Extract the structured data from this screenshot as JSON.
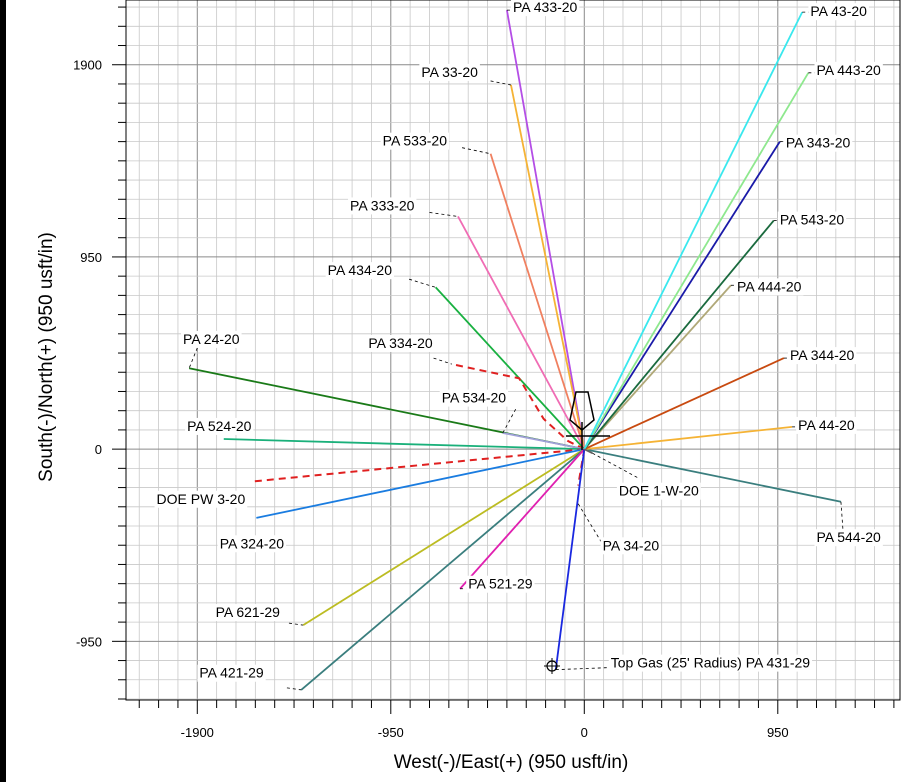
{
  "chart_data": {
    "type": "line",
    "title": "",
    "xlabel": "West(-)/East(+) (950 usft/in)",
    "ylabel": "South(-)/North(+) (950 usft/in)",
    "xlim": [
      -2250,
      1550
    ],
    "ylim": [
      -1240,
      2220
    ],
    "x_ticks": [
      -1900,
      -950,
      0,
      950
    ],
    "y_ticks": [
      -950,
      0,
      950,
      1900
    ],
    "grid": true,
    "series": [
      {
        "name": "PA 433-20",
        "color": "#b44ee6",
        "dash": false,
        "x": [
          0,
          -380
        ],
        "y": [
          0,
          2170
        ]
      },
      {
        "name": "PA 33-20",
        "color": "#f5b335",
        "dash": false,
        "x": [
          0,
          -360
        ],
        "y": [
          0,
          1800
        ]
      },
      {
        "name": "PA 533-20",
        "color": "#f08060",
        "dash": false,
        "x": [
          0,
          -460
        ],
        "y": [
          0,
          1460
        ]
      },
      {
        "name": "PA 333-20",
        "color": "#f06cb4",
        "dash": false,
        "x": [
          0,
          -620
        ],
        "y": [
          0,
          1150
        ]
      },
      {
        "name": "PA 434-20",
        "color": "#18b040",
        "dash": false,
        "x": [
          0,
          -730
        ],
        "y": [
          0,
          800
        ]
      },
      {
        "name": "PA 24-20",
        "color": "#1a7a18",
        "dash": false,
        "x": [
          0,
          -1940
        ],
        "y": [
          0,
          400
        ]
      },
      {
        "name": "PA 334-20",
        "color": "#e02020",
        "dash": true,
        "x": [
          0,
          -80,
          -200,
          -320,
          -650
        ],
        "y": [
          0,
          40,
          150,
          350,
          420
        ]
      },
      {
        "name": "PA 534-20",
        "color": "#a0a0d8",
        "dash": false,
        "x": [
          0,
          -400
        ],
        "y": [
          0,
          80
        ]
      },
      {
        "name": "PA 524-20",
        "color": "#1ab07a",
        "dash": false,
        "x": [
          0,
          -1770
        ],
        "y": [
          0,
          50
        ]
      },
      {
        "name": "DOE PW 3-20",
        "color": "#e02020",
        "dash": true,
        "x": [
          0,
          -1630
        ],
        "y": [
          0,
          -160
        ]
      },
      {
        "name": "PA 324-20",
        "color": "#1a7ce0",
        "dash": false,
        "x": [
          0,
          -1610
        ],
        "y": [
          0,
          -340
        ]
      },
      {
        "name": "PA 621-29",
        "color": "#bcbc22",
        "dash": false,
        "x": [
          0,
          -1380
        ],
        "y": [
          0,
          -870
        ]
      },
      {
        "name": "PA 421-29",
        "color": "#3a7e7e",
        "dash": false,
        "x": [
          0,
          -1390
        ],
        "y": [
          0,
          -1190
        ]
      },
      {
        "name": "PA 521-29",
        "color": "#e020b0",
        "dash": false,
        "x": [
          0,
          -610
        ],
        "y": [
          0,
          -690
        ]
      },
      {
        "name": "PA 34-20",
        "color": "#e02020",
        "dash": true,
        "x": [
          0,
          -30
        ],
        "y": [
          0,
          -180
        ]
      },
      {
        "name": "Top Gas (25' Radius) PA 431-29",
        "color": "#1a28e0",
        "dash": false,
        "x": [
          0,
          -140
        ],
        "y": [
          0,
          -1090
        ]
      },
      {
        "name": "PA 544-20",
        "color": "#3a7e7e",
        "dash": false,
        "x": [
          0,
          1260
        ],
        "y": [
          0,
          -260
        ]
      },
      {
        "name": "PA 44-20",
        "color": "#f5b335",
        "dash": false,
        "x": [
          0,
          1020
        ],
        "y": [
          0,
          110
        ]
      },
      {
        "name": "PA 344-20",
        "color": "#c84a10",
        "dash": false,
        "x": [
          0,
          980
        ],
        "y": [
          0,
          450
        ]
      },
      {
        "name": "PA 444-20",
        "color": "#b0a878",
        "dash": false,
        "x": [
          0,
          720
        ],
        "y": [
          0,
          810
        ]
      },
      {
        "name": "PA 543-20",
        "color": "#1a6a3e",
        "dash": false,
        "x": [
          0,
          930
        ],
        "y": [
          0,
          1130
        ]
      },
      {
        "name": "PA 343-20",
        "color": "#1a1aa8",
        "dash": false,
        "x": [
          0,
          960
        ],
        "y": [
          0,
          1520
        ]
      },
      {
        "name": "PA 443-20",
        "color": "#8ee88e",
        "dash": false,
        "x": [
          0,
          1100
        ],
        "y": [
          0,
          1860
        ]
      },
      {
        "name": "PA 43-20",
        "color": "#3ae8ee",
        "dash": false,
        "x": [
          0,
          1070
        ],
        "y": [
          0,
          2160
        ]
      },
      {
        "name": "DOE 1-W-20",
        "color": "#606060",
        "dash": false,
        "x": [
          0,
          40
        ],
        "y": [
          0,
          -20
        ]
      }
    ],
    "labels": [
      {
        "text": "PA 433-20",
        "x": -350,
        "y": 2160,
        "anchor": "start",
        "leader": [
          [
            -380,
            2170
          ],
          [
            -350,
            2170
          ]
        ]
      },
      {
        "text": "PA 33-20",
        "x": -800,
        "y": 1840,
        "anchor": "start",
        "leader": [
          [
            -460,
            1820
          ],
          [
            -360,
            1800
          ]
        ]
      },
      {
        "text": "PA 533-20",
        "x": -990,
        "y": 1500,
        "anchor": "start",
        "leader": [
          [
            -600,
            1490
          ],
          [
            -460,
            1460
          ]
        ]
      },
      {
        "text": "PA 333-20",
        "x": -1150,
        "y": 1180,
        "anchor": "start",
        "leader": [
          [
            -760,
            1170
          ],
          [
            -620,
            1150
          ]
        ]
      },
      {
        "text": "PA 434-20",
        "x": -1260,
        "y": 860,
        "anchor": "start",
        "leader": [
          [
            -860,
            840
          ],
          [
            -730,
            800
          ]
        ]
      },
      {
        "text": "PA 24-20",
        "x": -1970,
        "y": 520,
        "anchor": "start",
        "leader": [
          [
            -1900,
            500
          ],
          [
            -1940,
            400
          ]
        ]
      },
      {
        "text": "PA 334-20",
        "x": -1060,
        "y": 500,
        "anchor": "start",
        "leader": [
          [
            -740,
            450
          ],
          [
            -650,
            420
          ]
        ]
      },
      {
        "text": "PA 534-20",
        "x": -700,
        "y": 230,
        "anchor": "start",
        "leader": [
          [
            -400,
            80
          ],
          [
            -330,
            210
          ]
        ]
      },
      {
        "text": "PA 524-20",
        "x": -1950,
        "y": 90,
        "anchor": "start",
        "leader": null
      },
      {
        "text": "DOE PW 3-20",
        "x": -2100,
        "y": -270,
        "anchor": "start",
        "leader": null
      },
      {
        "text": "PA 324-20",
        "x": -1790,
        "y": -490,
        "anchor": "start",
        "leader": null
      },
      {
        "text": "PA 621-29",
        "x": -1810,
        "y": -830,
        "anchor": "start",
        "leader": [
          [
            -1450,
            -860
          ],
          [
            -1380,
            -870
          ]
        ]
      },
      {
        "text": "PA 421-29",
        "x": -1890,
        "y": -1130,
        "anchor": "start",
        "leader": [
          [
            -1460,
            -1180
          ],
          [
            -1390,
            -1190
          ]
        ]
      },
      {
        "text": "PA 521-29",
        "x": -570,
        "y": -690,
        "anchor": "start",
        "leader": [
          [
            -610,
            -690
          ],
          [
            -580,
            -690
          ]
        ]
      },
      {
        "text": "PA 34-20",
        "x": 90,
        "y": -500,
        "anchor": "start",
        "leader": [
          [
            -30,
            -270
          ],
          [
            90,
            -470
          ]
        ]
      },
      {
        "text": "Top Gas (25' Radius) PA 431-29",
        "x": 130,
        "y": -1080,
        "anchor": "start",
        "leader": [
          [
            -140,
            -1090
          ],
          [
            120,
            -1080
          ]
        ]
      },
      {
        "text": "PA 544-20",
        "x": 1140,
        "y": -460,
        "anchor": "start",
        "leader": [
          [
            1260,
            -260
          ],
          [
            1270,
            -400
          ]
        ]
      },
      {
        "text": "PA 44-20",
        "x": 1050,
        "y": 95,
        "anchor": "start",
        "leader": [
          [
            1020,
            110
          ],
          [
            1045,
            110
          ]
        ]
      },
      {
        "text": "PA 344-20",
        "x": 1010,
        "y": 440,
        "anchor": "start",
        "leader": [
          [
            980,
            450
          ],
          [
            1005,
            450
          ]
        ]
      },
      {
        "text": "PA 444-20",
        "x": 750,
        "y": 780,
        "anchor": "start",
        "leader": [
          [
            720,
            810
          ],
          [
            745,
            810
          ]
        ]
      },
      {
        "text": "PA 543-20",
        "x": 960,
        "y": 1110,
        "anchor": "start",
        "leader": [
          [
            930,
            1130
          ],
          [
            955,
            1130
          ]
        ]
      },
      {
        "text": "PA 343-20",
        "x": 990,
        "y": 1490,
        "anchor": "start",
        "leader": [
          [
            960,
            1520
          ],
          [
            985,
            1520
          ]
        ]
      },
      {
        "text": "PA 443-20",
        "x": 1140,
        "y": 1850,
        "anchor": "start",
        "leader": [
          [
            1100,
            1860
          ],
          [
            1135,
            1860
          ]
        ]
      },
      {
        "text": "PA 43-20",
        "x": 1110,
        "y": 2140,
        "anchor": "start",
        "leader": [
          [
            1070,
            2160
          ],
          [
            1105,
            2160
          ]
        ]
      },
      {
        "text": "DOE 1-W-20",
        "x": 170,
        "y": -230,
        "anchor": "start",
        "leader": [
          [
            40,
            -20
          ],
          [
            260,
            -140
          ]
        ]
      }
    ]
  }
}
